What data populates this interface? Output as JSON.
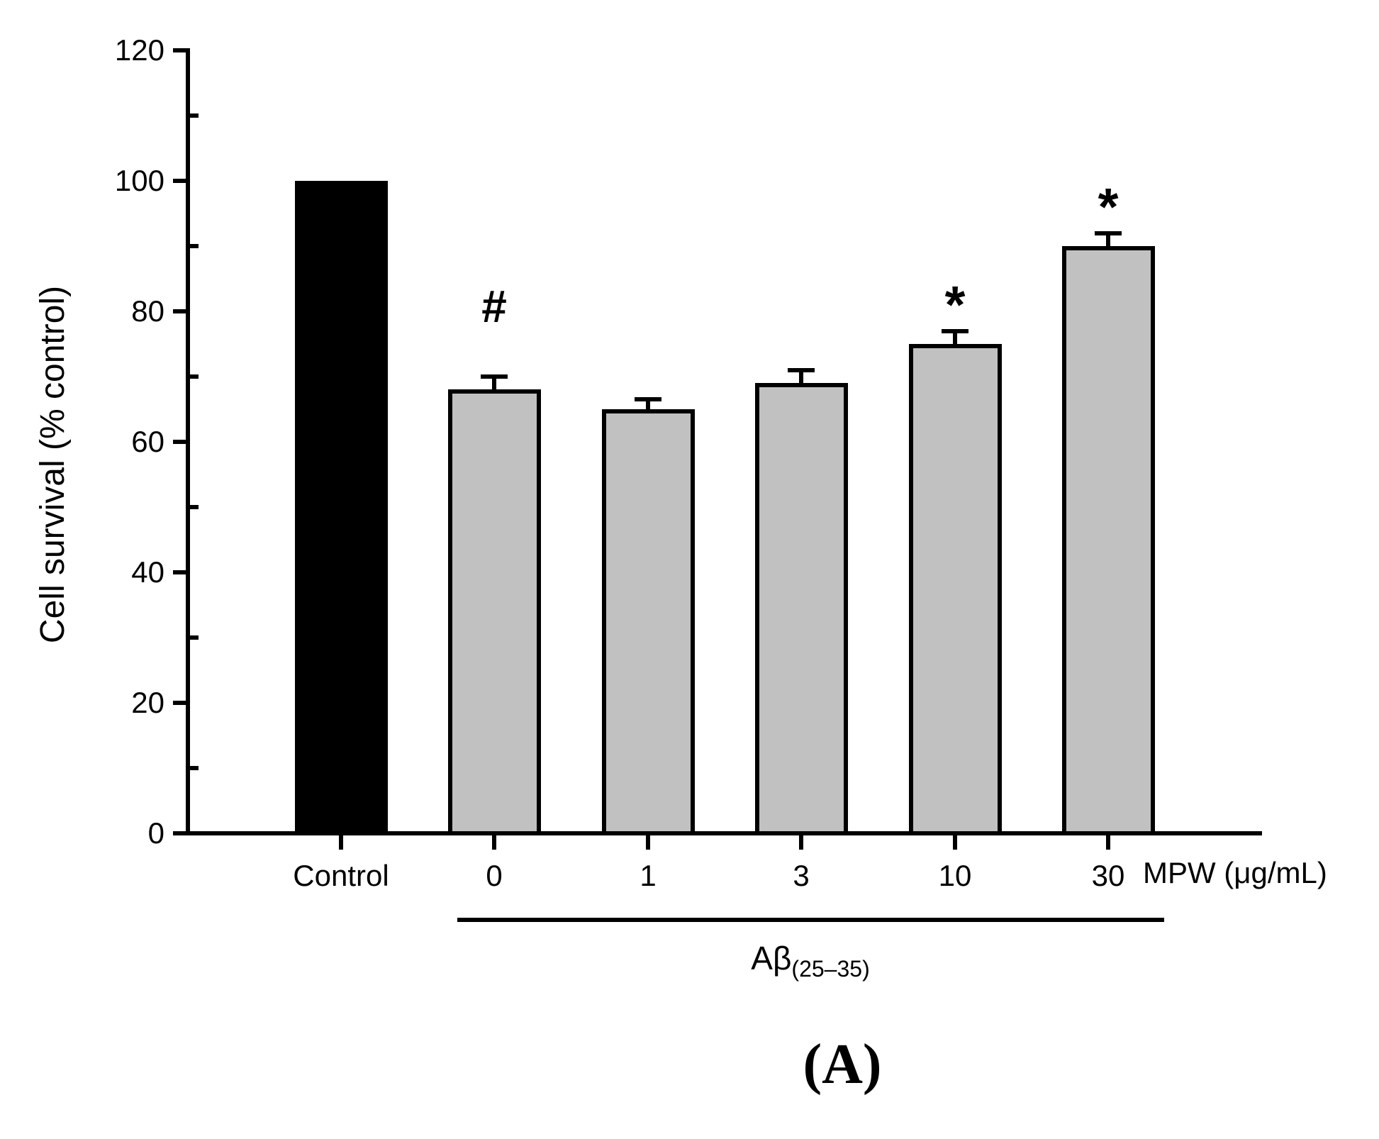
{
  "chart_data": {
    "type": "bar",
    "title": "",
    "ylabel": "Cell survival (% control)",
    "xlabel_right": "MPW (μg/mL)",
    "group_label": {
      "base": "Aβ",
      "subscript": "(25–35)"
    },
    "group_bracket_categories": [
      "0",
      "1",
      "3",
      "10",
      "30"
    ],
    "panel_label": "(A)",
    "categories": [
      "Control",
      "0",
      "1",
      "3",
      "10",
      "30"
    ],
    "values": [
      100,
      68,
      65,
      69,
      75,
      90
    ],
    "errors": [
      0,
      2,
      1.5,
      2,
      2,
      2
    ],
    "annotations": [
      "",
      "#",
      "",
      "",
      "*",
      "*"
    ],
    "bar_colors": [
      "#000000",
      "#c1c1c1",
      "#c1c1c1",
      "#c1c1c1",
      "#c1c1c1",
      "#c1c1c1"
    ],
    "ylim": [
      0,
      120
    ],
    "ytick_step": 20,
    "ytick_labels": [
      "0",
      "20",
      "40",
      "60",
      "80",
      "100",
      "120"
    ],
    "grid": false,
    "legend": null
  }
}
